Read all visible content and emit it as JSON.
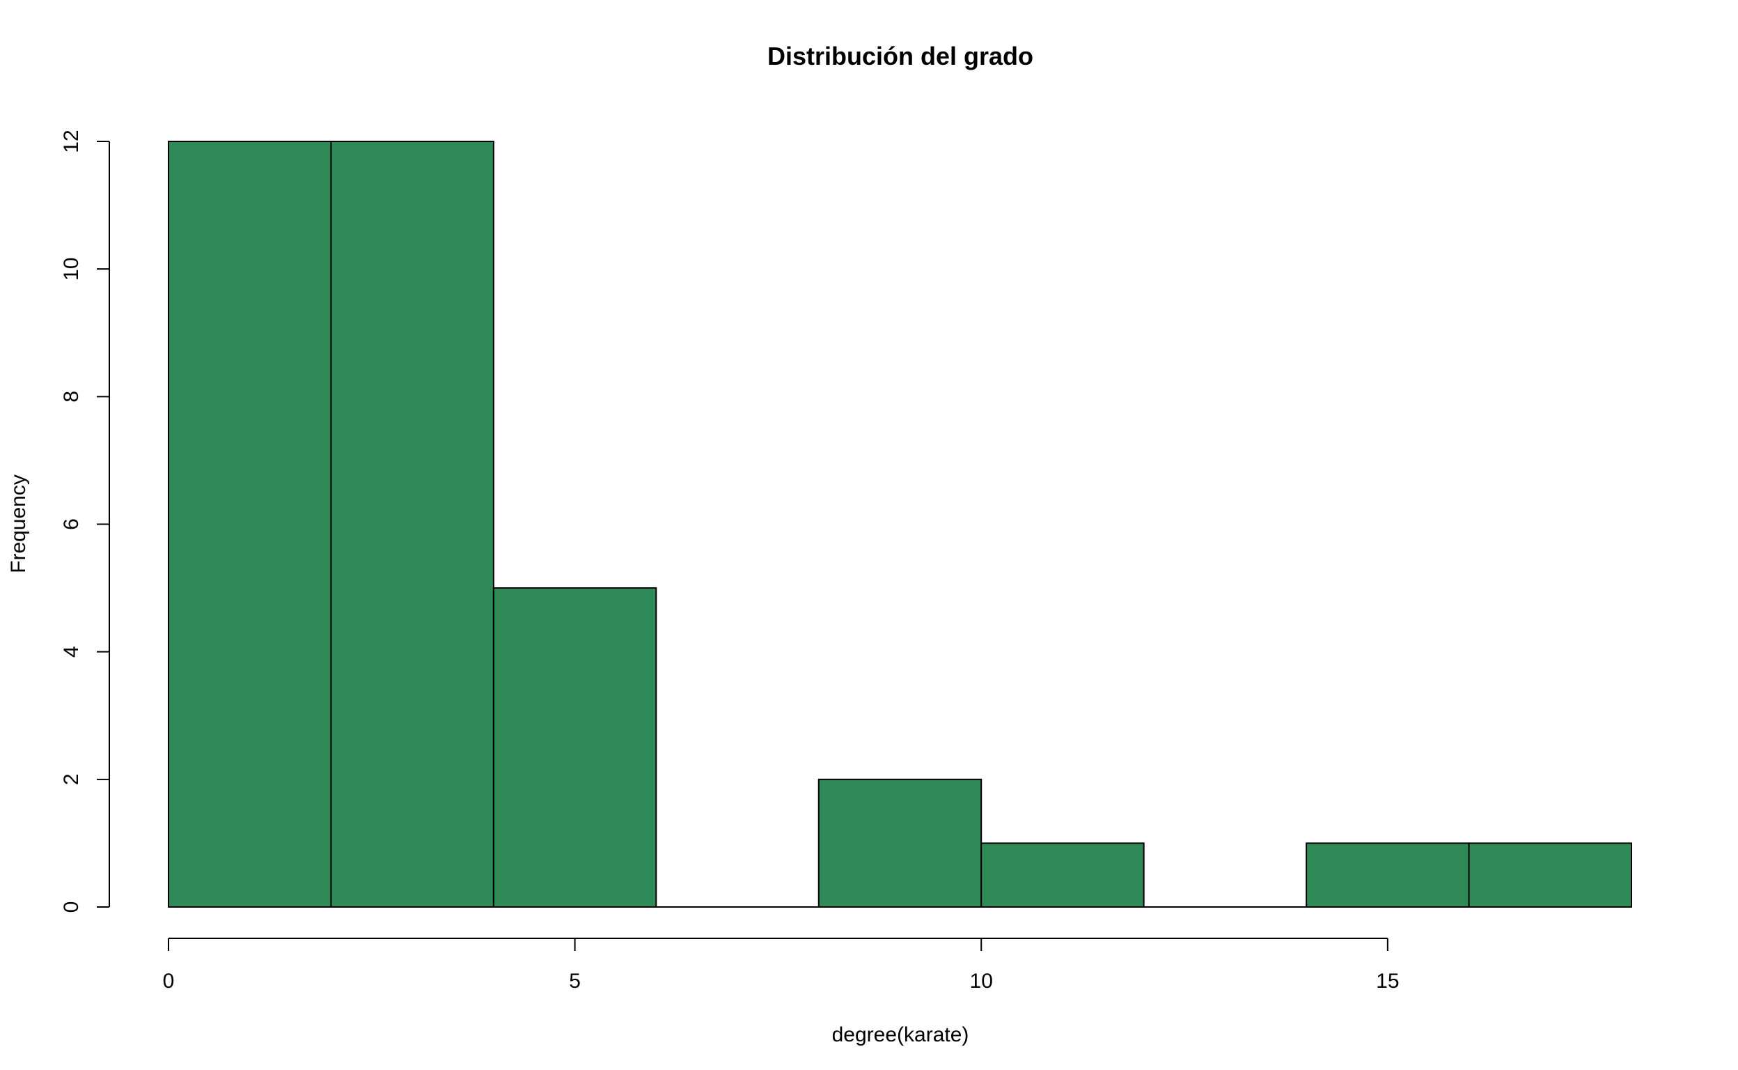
{
  "chart_data": {
    "type": "bar",
    "title": "Distribución del grado",
    "xlabel": "degree(karate)",
    "ylabel": "Frequency",
    "bin_edges": [
      0,
      2,
      4,
      6,
      8,
      10,
      12,
      14,
      16,
      18
    ],
    "values": [
      12,
      12,
      5,
      0,
      2,
      1,
      0,
      1,
      1
    ],
    "xlim": [
      0,
      18
    ],
    "ylim": [
      0,
      12
    ],
    "x_ticks": [
      0,
      5,
      10,
      15
    ],
    "y_ticks": [
      0,
      2,
      4,
      6,
      8,
      10,
      12
    ],
    "bar_color": "#2E8B57",
    "grid": false,
    "legend": "none"
  }
}
